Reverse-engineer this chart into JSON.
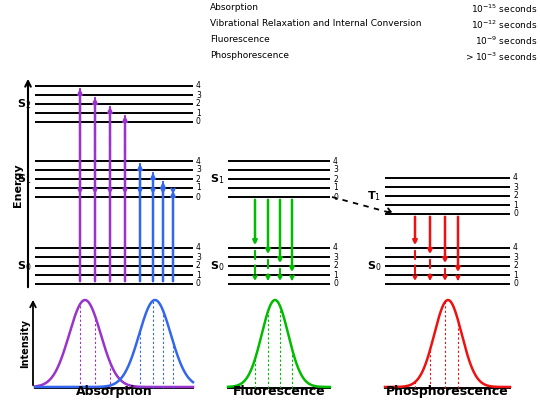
{
  "bg_color": "#ffffff",
  "colors": {
    "purple": "#9933CC",
    "blue": "#3366EE",
    "green": "#00BB00",
    "red": "#EE1111",
    "black": "#000000"
  },
  "annotation_left": [
    "Absorption",
    "Vibrational Relaxation and Internal Conversion",
    "Fluorescence",
    "Phosphorescence"
  ],
  "annotation_right": [
    "$10^{-15}$ seconds",
    "$10^{-12}$ seconds",
    "$10^{-9}$ seconds",
    "$>10^{-3}$ seconds"
  ],
  "section_labels": [
    "Absorption",
    "Fluorescence",
    "Phosphorescence"
  ]
}
